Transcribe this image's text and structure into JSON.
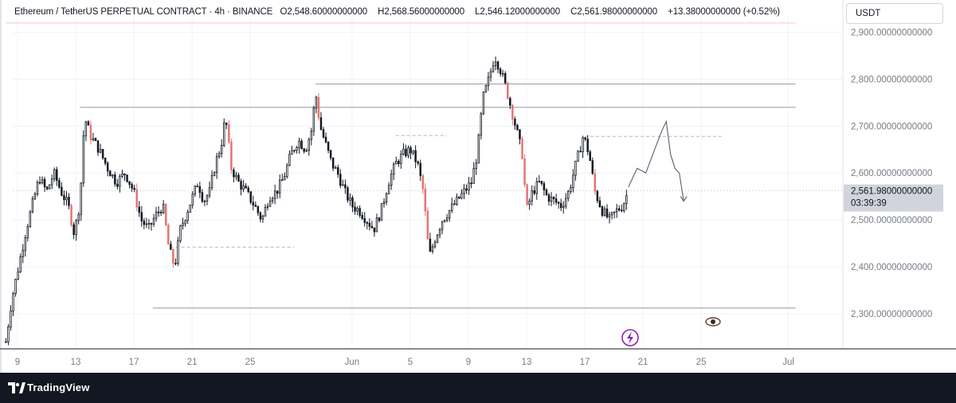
{
  "legend": {
    "symbol": "Ethereum / TetherUS PERPETUAL CONTRACT · 4h · BINANCE",
    "open_label": "O",
    "open": "2,548.60000000000",
    "high_label": "H",
    "high": "2,568.56000000000",
    "low_label": "L",
    "low": "2,546.12000000000",
    "close_label": "C",
    "close": "2,561.98000000000",
    "change": "+13.38000000000 (+0.52%)"
  },
  "currency": "USDT",
  "price_tag": {
    "price": "2,561.98000000000",
    "countdown": "03:39:39"
  },
  "brand": "TradingView",
  "colors": {
    "bull": "#131722",
    "bear": "#e57373",
    "grid": "#f0f3fa",
    "axis_text": "#787b86"
  },
  "chart_data": {
    "type": "candlestick",
    "timeframe": "4h",
    "y_tick_values": [
      2300,
      2400,
      2500,
      2600,
      2700,
      2800,
      2900
    ],
    "y_tick_labels": [
      "2,300.00000000000",
      "2,400.00000000000",
      "2,500.00000000000",
      "2,600.00000000000",
      "2,700.00000000000",
      "2,800.00000000000",
      "2,900.00000000000"
    ],
    "ylim": [
      2225,
      2935
    ],
    "x_tick_labels": [
      "9",
      "13",
      "17",
      "21",
      "25",
      "Jun",
      "5",
      "9",
      "13",
      "17",
      "21",
      "25",
      "Jul"
    ],
    "x_tick_days": [
      9,
      13,
      17,
      21,
      25,
      32,
      36,
      40,
      44,
      48,
      52,
      56,
      62
    ],
    "first_day": 8.2,
    "last_day": 51.0,
    "price_series": [
      [
        8.2,
        2240
      ],
      [
        8.6,
        2330
      ],
      [
        9.2,
        2420
      ],
      [
        9.6,
        2480
      ],
      [
        10.0,
        2530
      ],
      [
        10.5,
        2590
      ],
      [
        11.0,
        2560
      ],
      [
        11.5,
        2600
      ],
      [
        12.0,
        2560
      ],
      [
        12.5,
        2530
      ],
      [
        12.9,
        2470
      ],
      [
        13.3,
        2540
      ],
      [
        13.6,
        2720
      ],
      [
        14.0,
        2680
      ],
      [
        14.6,
        2650
      ],
      [
        15.2,
        2610
      ],
      [
        15.8,
        2580
      ],
      [
        16.4,
        2600
      ],
      [
        17.0,
        2560
      ],
      [
        17.5,
        2500
      ],
      [
        18.0,
        2480
      ],
      [
        18.5,
        2510
      ],
      [
        19.0,
        2530
      ],
      [
        19.4,
        2440
      ],
      [
        19.8,
        2400
      ],
      [
        20.2,
        2480
      ],
      [
        20.8,
        2530
      ],
      [
        21.4,
        2580
      ],
      [
        21.8,
        2540
      ],
      [
        22.2,
        2560
      ],
      [
        22.6,
        2620
      ],
      [
        23.0,
        2660
      ],
      [
        23.3,
        2720
      ],
      [
        23.7,
        2610
      ],
      [
        24.2,
        2580
      ],
      [
        24.7,
        2560
      ],
      [
        25.3,
        2530
      ],
      [
        25.8,
        2500
      ],
      [
        26.3,
        2550
      ],
      [
        26.8,
        2560
      ],
      [
        27.3,
        2590
      ],
      [
        27.8,
        2640
      ],
      [
        28.3,
        2670
      ],
      [
        28.8,
        2650
      ],
      [
        29.2,
        2690
      ],
      [
        29.5,
        2770
      ],
      [
        29.8,
        2700
      ],
      [
        30.2,
        2660
      ],
      [
        30.6,
        2620
      ],
      [
        31.0,
        2600
      ],
      [
        31.5,
        2560
      ],
      [
        32.0,
        2530
      ],
      [
        32.5,
        2520
      ],
      [
        33.0,
        2500
      ],
      [
        33.5,
        2480
      ],
      [
        34.0,
        2520
      ],
      [
        34.5,
        2580
      ],
      [
        35.0,
        2620
      ],
      [
        35.5,
        2640
      ],
      [
        36.0,
        2650
      ],
      [
        36.5,
        2620
      ],
      [
        36.9,
        2560
      ],
      [
        37.3,
        2420
      ],
      [
        37.7,
        2460
      ],
      [
        38.2,
        2500
      ],
      [
        38.7,
        2520
      ],
      [
        39.2,
        2540
      ],
      [
        39.7,
        2560
      ],
      [
        40.2,
        2580
      ],
      [
        40.6,
        2640
      ],
      [
        41.0,
        2760
      ],
      [
        41.4,
        2800
      ],
      [
        41.8,
        2850
      ],
      [
        42.2,
        2820
      ],
      [
        42.6,
        2780
      ],
      [
        43.0,
        2730
      ],
      [
        43.4,
        2680
      ],
      [
        43.7,
        2640
      ],
      [
        44.0,
        2520
      ],
      [
        44.4,
        2560
      ],
      [
        44.9,
        2580
      ],
      [
        45.4,
        2550
      ],
      [
        45.9,
        2540
      ],
      [
        46.4,
        2530
      ],
      [
        46.9,
        2560
      ],
      [
        47.4,
        2620
      ],
      [
        47.9,
        2680
      ],
      [
        48.3,
        2640
      ],
      [
        48.7,
        2560
      ],
      [
        49.2,
        2520
      ],
      [
        49.7,
        2500
      ],
      [
        50.2,
        2520
      ],
      [
        50.6,
        2530
      ],
      [
        51.0,
        2562
      ]
    ],
    "price_tag_value": 2561.98,
    "horizontal_levels": [
      {
        "price": 2740,
        "day_start": 13.3,
        "day_end": 62.5,
        "style": "solid"
      },
      {
        "price": 2790,
        "day_start": 29.5,
        "day_end": 62.5,
        "style": "solid"
      },
      {
        "price": 2312,
        "day_start": 18.3,
        "day_end": 62.5,
        "style": "solid"
      },
      {
        "price": 2920,
        "day_start": 8.2,
        "day_end": 62.5,
        "style": "solid-light"
      },
      {
        "price": 2680,
        "day_start": 35.0,
        "day_end": 38.5,
        "style": "dashed"
      },
      {
        "price": 2678,
        "day_start": 48.0,
        "day_end": 57.4,
        "style": "dashed"
      },
      {
        "price": 2442,
        "day_start": 19.5,
        "day_end": 28.0,
        "style": "dashed"
      }
    ],
    "projection_path": [
      [
        51.0,
        2570
      ],
      [
        51.6,
        2610
      ],
      [
        52.2,
        2600
      ],
      [
        52.8,
        2650
      ],
      [
        53.3,
        2690
      ],
      [
        53.6,
        2710
      ],
      [
        53.9,
        2640
      ],
      [
        54.2,
        2610
      ],
      [
        54.5,
        2600
      ],
      [
        54.8,
        2540
      ]
    ]
  }
}
